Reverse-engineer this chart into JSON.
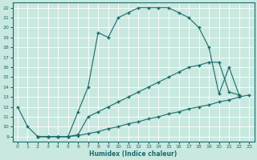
{
  "xlabel": "Humidex (Indice chaleur)",
  "bg_color": "#c8e8e0",
  "grid_color": "#b0d8d0",
  "line_color": "#1a6b6b",
  "xlim": [
    -0.5,
    23.5
  ],
  "ylim": [
    8.5,
    22.5
  ],
  "yticks": [
    9,
    10,
    11,
    12,
    13,
    14,
    15,
    16,
    17,
    18,
    19,
    20,
    21,
    22
  ],
  "xticks": [
    0,
    1,
    2,
    3,
    4,
    5,
    6,
    7,
    8,
    9,
    10,
    11,
    12,
    13,
    14,
    15,
    16,
    17,
    18,
    19,
    20,
    21,
    22,
    23
  ],
  "curve1_x": [
    0,
    1,
    2,
    3,
    4,
    5,
    6,
    7,
    8,
    9,
    10,
    11,
    12,
    13,
    14,
    15,
    16,
    17,
    18,
    19,
    20,
    21,
    22
  ],
  "curve1_y": [
    12,
    10,
    9,
    9,
    9,
    9,
    11.5,
    14,
    19.5,
    19,
    21,
    21.5,
    22,
    22,
    22,
    22,
    21.5,
    21,
    20,
    18,
    13.3,
    16.0,
    13.2
  ],
  "curve2_x": [
    2,
    3,
    4,
    5,
    6,
    7,
    8,
    9,
    10,
    11,
    12,
    13,
    14,
    15,
    16,
    17,
    18,
    19,
    20,
    21,
    22
  ],
  "curve2_y": [
    9,
    9,
    9,
    9,
    9.2,
    11,
    11.5,
    12,
    12.5,
    13,
    13.5,
    14,
    14.5,
    15,
    15.5,
    16,
    16.2,
    16.5,
    16.5,
    13.5,
    13.2
  ],
  "curve3_x": [
    2,
    3,
    4,
    5,
    6,
    7,
    8,
    9,
    10,
    11,
    12,
    13,
    14,
    15,
    16,
    17,
    18,
    19,
    20,
    21,
    22,
    23
  ],
  "curve3_y": [
    9,
    9,
    9,
    9,
    9.1,
    9.3,
    9.5,
    9.8,
    10,
    10.3,
    10.5,
    10.8,
    11,
    11.3,
    11.5,
    11.8,
    12,
    12.2,
    12.5,
    12.7,
    13.0,
    13.2
  ]
}
